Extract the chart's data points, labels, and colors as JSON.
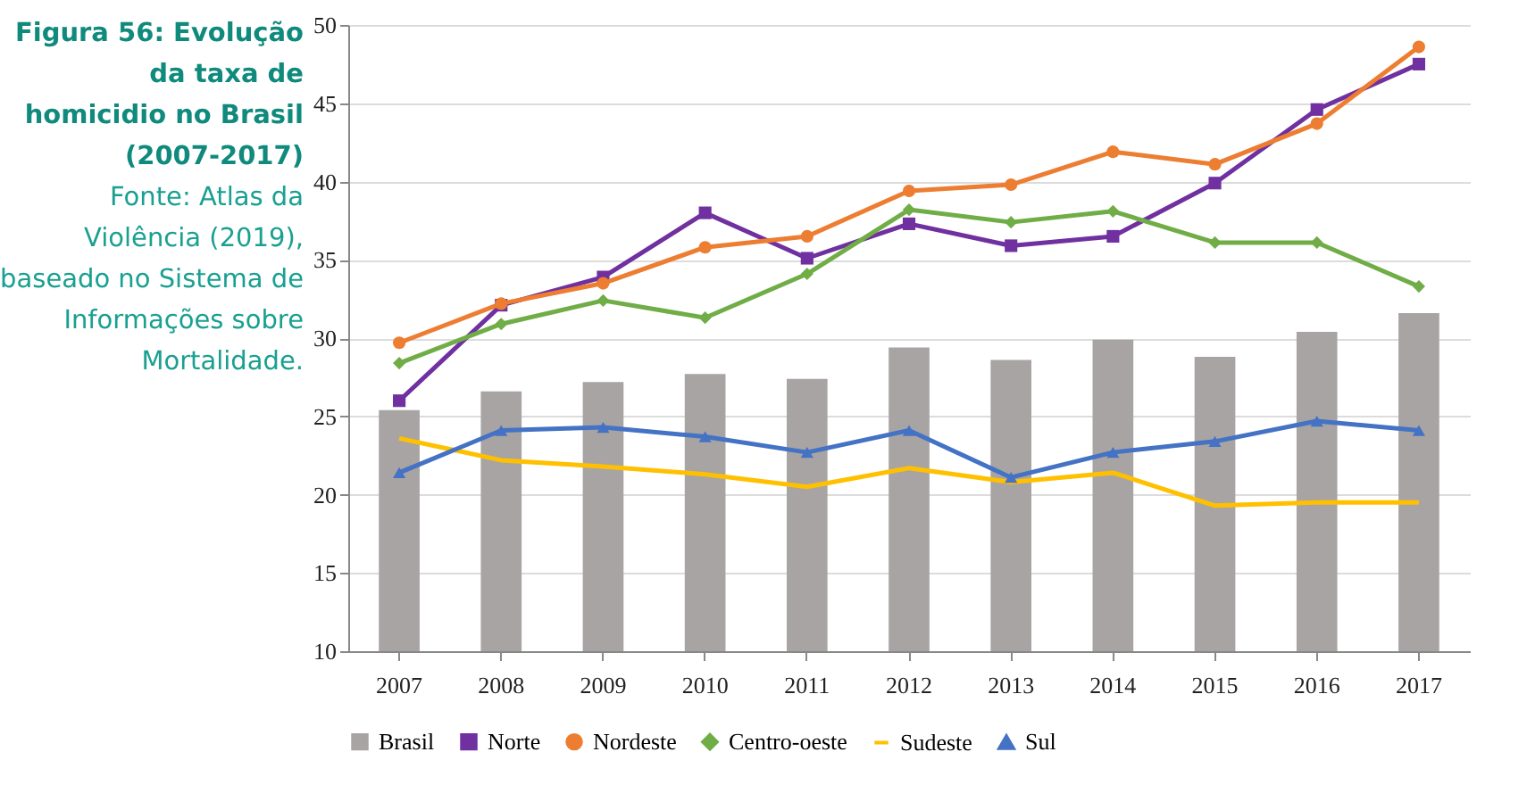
{
  "chart_data": {
    "type": "bar",
    "title": "Figura 56: Evolução da taxa de homicidio no Brasil (2007-2017)",
    "annotations": [
      "Fonte: Atlas da Violência (2019), baseado no Sistema de Informações sobre Mortalidade."
    ],
    "categories": [
      "2007",
      "2008",
      "2009",
      "2010",
      "2011",
      "2012",
      "2013",
      "2014",
      "2015",
      "2016",
      "2017"
    ],
    "series": [
      {
        "name": "Brasil",
        "color": "#a8a4a4",
        "values": [
          25.4,
          26.6,
          27.2,
          27.7,
          27.4,
          29.4,
          28.6,
          29.9,
          28.8,
          30.4,
          31.6
        ]
      },
      {
        "name": "Norte",
        "type": "line",
        "marker": "square",
        "color": "#7030a0",
        "values": [
          26.0,
          32.1,
          33.9,
          38.0,
          35.1,
          37.3,
          35.9,
          36.5,
          39.9,
          44.6,
          47.5
        ]
      },
      {
        "name": "Nordeste",
        "type": "line",
        "marker": "circle",
        "color": "#ed7d31",
        "values": [
          29.7,
          32.2,
          33.5,
          35.8,
          36.5,
          39.4,
          39.8,
          41.9,
          41.1,
          43.7,
          48.6
        ]
      },
      {
        "name": "Centro-oeste",
        "type": "line",
        "marker": "diamond",
        "color": "#70ad47",
        "values": [
          28.4,
          30.9,
          32.4,
          31.3,
          34.1,
          38.2,
          37.4,
          38.1,
          36.1,
          36.1,
          33.3
        ]
      },
      {
        "name": "Sudeste",
        "type": "line",
        "marker": "none",
        "color": "#ffc000",
        "values": [
          23.6,
          22.2,
          21.8,
          21.3,
          20.5,
          21.7,
          20.8,
          21.4,
          19.3,
          19.5,
          19.5
        ]
      },
      {
        "name": "Sul",
        "type": "line",
        "marker": "triangle",
        "color": "#4472c4",
        "values": [
          21.4,
          24.1,
          24.3,
          23.7,
          22.7,
          24.1,
          21.1,
          22.7,
          23.4,
          24.7,
          24.1
        ]
      }
    ],
    "ylim": [
      10,
      50
    ],
    "yticks": [
      10,
      15,
      20,
      25,
      30,
      35,
      40,
      45,
      50
    ],
    "grid": "y",
    "legend": "bottom"
  }
}
